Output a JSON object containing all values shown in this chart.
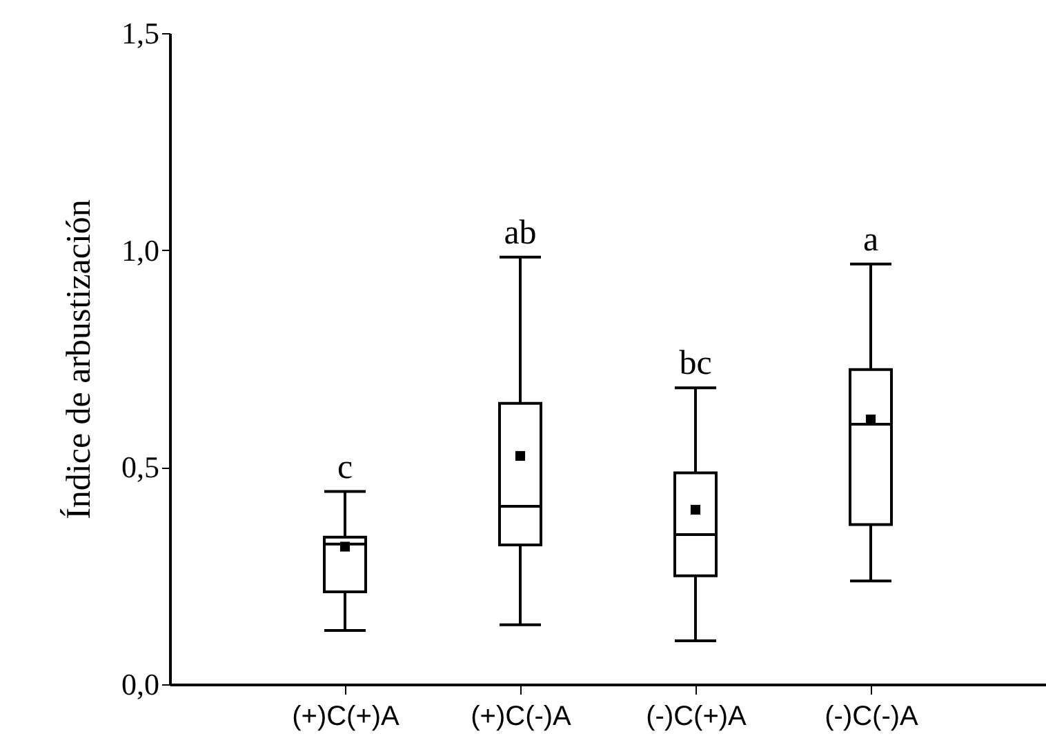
{
  "chart_data": {
    "type": "box",
    "ylabel": "Índice de arbustización",
    "categories": [
      "(+)C(+)A",
      "(+)C(-)A",
      "(-)C(+)A",
      "(-)C(-)A"
    ],
    "boxes": [
      {
        "low": 0.124,
        "q1": 0.213,
        "median": 0.323,
        "q3": 0.339,
        "high": 0.444,
        "mean": 0.317
      },
      {
        "low": 0.137,
        "q1": 0.321,
        "median": 0.41,
        "q3": 0.647,
        "high": 0.984,
        "mean": 0.526
      },
      {
        "low": 0.1,
        "q1": 0.25,
        "median": 0.345,
        "q3": 0.487,
        "high": 0.683,
        "mean": 0.402
      },
      {
        "low": 0.238,
        "q1": 0.368,
        "median": 0.599,
        "q3": 0.725,
        "high": 0.968,
        "mean": 0.61
      }
    ],
    "ylim": [
      0,
      1.5
    ],
    "yticks": [
      {
        "value": 0,
        "label": "0,0"
      },
      {
        "value": 0.5,
        "label": "0,5"
      },
      {
        "value": 1,
        "label": "1,0"
      },
      {
        "value": 1.5,
        "label": "1,5"
      }
    ],
    "annotations": [
      {
        "text": "c",
        "x": "(+)C(+)A",
        "y": 0.444
      },
      {
        "text": "ab",
        "x": "(+)C(-)A",
        "y": 0.984
      },
      {
        "text": "bc",
        "x": "(-)C(+)A",
        "y": 0.683
      },
      {
        "text": "a",
        "x": "(-)C(-)A",
        "y": 0.968
      }
    ]
  }
}
